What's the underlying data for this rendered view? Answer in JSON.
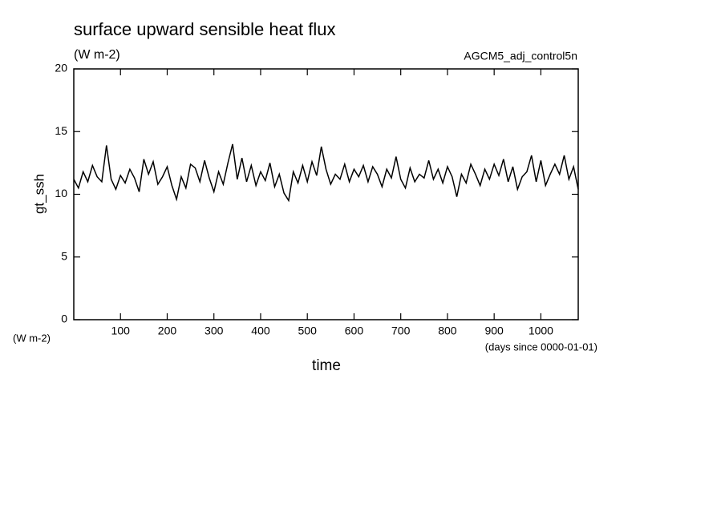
{
  "chart_data": {
    "type": "line",
    "title": "surface upward sensible heat flux",
    "subtitle": "(W m-2)",
    "source": "AGCM5_adj_control5n",
    "ylabel": "gt_ssh",
    "y_units": "(W m-2)",
    "xlabel": "time",
    "x_units": "(days since 0000-01-01)",
    "color": "#000000",
    "x": [
      0,
      10,
      20,
      30,
      40,
      50,
      60,
      70,
      80,
      90,
      100,
      110,
      120,
      130,
      140,
      150,
      160,
      170,
      180,
      190,
      200,
      210,
      220,
      230,
      240,
      250,
      260,
      270,
      280,
      290,
      300,
      310,
      320,
      330,
      340,
      350,
      360,
      370,
      380,
      390,
      400,
      410,
      420,
      430,
      440,
      450,
      460,
      470,
      480,
      490,
      500,
      510,
      520,
      530,
      540,
      550,
      560,
      570,
      580,
      590,
      600,
      610,
      620,
      630,
      640,
      650,
      660,
      670,
      680,
      690,
      700,
      710,
      720,
      730,
      740,
      750,
      760,
      770,
      780,
      790,
      800,
      810,
      820,
      830,
      840,
      850,
      860,
      870,
      880,
      890,
      900,
      910,
      920,
      930,
      940,
      950,
      960,
      970,
      980,
      990,
      1000,
      1010,
      1020,
      1030,
      1040,
      1050,
      1060,
      1070,
      1080
    ],
    "values": [
      11.2,
      10.5,
      11.8,
      11.0,
      12.3,
      11.4,
      11.0,
      13.9,
      11.2,
      10.4,
      11.5,
      10.9,
      12.0,
      11.3,
      10.2,
      12.8,
      11.6,
      12.6,
      10.8,
      11.4,
      12.2,
      10.7,
      9.6,
      11.4,
      10.5,
      12.4,
      12.1,
      11.0,
      12.7,
      11.3,
      10.2,
      11.8,
      10.8,
      12.5,
      14.0,
      11.2,
      12.9,
      11.0,
      12.3,
      10.7,
      11.8,
      11.1,
      12.5,
      10.6,
      11.6,
      10.1,
      9.5,
      11.8,
      10.9,
      12.3,
      11.0,
      12.6,
      11.5,
      13.8,
      12.0,
      10.8,
      11.6,
      11.2,
      12.4,
      11.0,
      12.0,
      11.4,
      12.3,
      11.0,
      12.2,
      11.6,
      10.6,
      12.0,
      11.3,
      13.0,
      11.2,
      10.5,
      12.1,
      11.0,
      11.6,
      11.3,
      12.7,
      11.2,
      12.0,
      10.9,
      12.2,
      11.4,
      9.8,
      11.6,
      10.9,
      12.4,
      11.6,
      10.7,
      12.0,
      11.2,
      12.4,
      11.5,
      12.8,
      11.0,
      12.2,
      10.4,
      11.4,
      11.8,
      13.1,
      11.0,
      12.7,
      10.7,
      11.6,
      12.4,
      11.6,
      13.1,
      11.2,
      12.2,
      10.4
    ],
    "xlim": [
      0,
      1080
    ],
    "ylim": [
      0,
      20
    ],
    "xticks": [
      100,
      200,
      300,
      400,
      500,
      600,
      700,
      800,
      900,
      1000
    ],
    "yticks": [
      0,
      5,
      10,
      15,
      20
    ]
  }
}
